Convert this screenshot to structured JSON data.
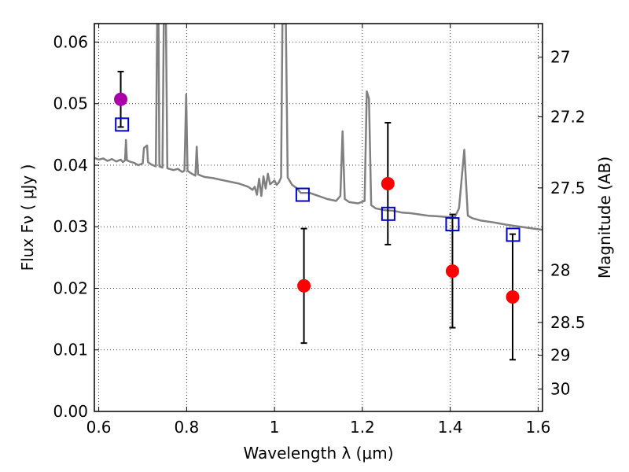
{
  "chart_data": {
    "type": "scatter",
    "xlabel": "Wavelength  λ (μm)",
    "ylabel": "Flux  Fν  ( μJy )",
    "ylabel_right": "Magnitude (AB)",
    "xlim": [
      0.59,
      1.61
    ],
    "ylim": [
      0.0,
      0.063
    ],
    "grid": true,
    "x_ticks": [
      {
        "value": 0.6,
        "label": "0.6"
      },
      {
        "value": 0.8,
        "label": "0.8"
      },
      {
        "value": 1.0,
        "label": "1"
      },
      {
        "value": 1.2,
        "label": "1.2"
      },
      {
        "value": 1.4,
        "label": "1.4"
      },
      {
        "value": 1.6,
        "label": "1.6"
      }
    ],
    "y_ticks": [
      {
        "value": 0.0,
        "label": "0.00"
      },
      {
        "value": 0.01,
        "label": "0.01"
      },
      {
        "value": 0.02,
        "label": "0.02"
      },
      {
        "value": 0.03,
        "label": "0.03"
      },
      {
        "value": 0.04,
        "label": "0.04"
      },
      {
        "value": 0.05,
        "label": "0.05"
      },
      {
        "value": 0.06,
        "label": "0.06"
      }
    ],
    "mag_ticks": [
      {
        "mag": 27,
        "label": "27"
      },
      {
        "mag": 27.2,
        "label": "27.2"
      },
      {
        "mag": 27.5,
        "label": "27.5"
      },
      {
        "mag": 28,
        "label": "28"
      },
      {
        "mag": 28.5,
        "label": "28.5"
      },
      {
        "mag": 29,
        "label": "29"
      },
      {
        "mag": 30,
        "label": "30"
      }
    ],
    "observed": [
      {
        "x": 0.65,
        "y": 0.0507,
        "err": 0.0045,
        "color": "#aa00aa"
      },
      {
        "x": 1.067,
        "y": 0.0204,
        "err": 0.0093,
        "color": "#ff0000"
      },
      {
        "x": 1.258,
        "y": 0.037,
        "err": 0.0099,
        "color": "#ff0000"
      },
      {
        "x": 1.405,
        "y": 0.0228,
        "err": 0.0092,
        "color": "#ff0000"
      },
      {
        "x": 1.542,
        "y": 0.0186,
        "err": 0.0102,
        "color": "#ff0000"
      }
    ],
    "model_points": [
      {
        "x": 0.653,
        "y": 0.0466
      },
      {
        "x": 1.064,
        "y": 0.0352
      },
      {
        "x": 1.259,
        "y": 0.0321
      },
      {
        "x": 1.405,
        "y": 0.0304
      },
      {
        "x": 1.543,
        "y": 0.0287
      }
    ],
    "spectrum": {
      "color": "#808080",
      "points": [
        [
          0.59,
          0.0412
        ],
        [
          0.6,
          0.0409
        ],
        [
          0.61,
          0.0411
        ],
        [
          0.62,
          0.0407
        ],
        [
          0.63,
          0.041
        ],
        [
          0.64,
          0.0406
        ],
        [
          0.65,
          0.0409
        ],
        [
          0.655,
          0.0405
        ],
        [
          0.66,
          0.0408
        ],
        [
          0.662,
          0.0441
        ],
        [
          0.664,
          0.0408
        ],
        [
          0.67,
          0.0406
        ],
        [
          0.68,
          0.0404
        ],
        [
          0.69,
          0.04
        ],
        [
          0.7,
          0.0403
        ],
        [
          0.703,
          0.0428
        ],
        [
          0.71,
          0.0432
        ],
        [
          0.712,
          0.0405
        ],
        [
          0.72,
          0.0401
        ],
        [
          0.73,
          0.0398
        ],
        [
          0.733,
          0.063
        ],
        [
          0.736,
          0.063
        ],
        [
          0.738,
          0.0398
        ],
        [
          0.745,
          0.0396
        ],
        [
          0.748,
          0.063
        ],
        [
          0.753,
          0.063
        ],
        [
          0.756,
          0.0395
        ],
        [
          0.77,
          0.0392
        ],
        [
          0.78,
          0.0394
        ],
        [
          0.79,
          0.0389
        ],
        [
          0.795,
          0.0391
        ],
        [
          0.799,
          0.0515
        ],
        [
          0.802,
          0.0391
        ],
        [
          0.81,
          0.0387
        ],
        [
          0.82,
          0.0383
        ],
        [
          0.823,
          0.043
        ],
        [
          0.826,
          0.0385
        ],
        [
          0.84,
          0.0381
        ],
        [
          0.86,
          0.0379
        ],
        [
          0.88,
          0.0376
        ],
        [
          0.9,
          0.0373
        ],
        [
          0.92,
          0.037
        ],
        [
          0.94,
          0.0365
        ],
        [
          0.95,
          0.036
        ],
        [
          0.955,
          0.0365
        ],
        [
          0.96,
          0.0352
        ],
        [
          0.965,
          0.0378
        ],
        [
          0.97,
          0.035
        ],
        [
          0.975,
          0.0382
        ],
        [
          0.98,
          0.0362
        ],
        [
          0.985,
          0.0386
        ],
        [
          0.99,
          0.0369
        ],
        [
          1.0,
          0.0375
        ],
        [
          1.005,
          0.0368
        ],
        [
          1.01,
          0.0372
        ],
        [
          1.015,
          0.038
        ],
        [
          1.018,
          0.063
        ],
        [
          1.026,
          0.063
        ],
        [
          1.03,
          0.038
        ],
        [
          1.04,
          0.0368
        ],
        [
          1.05,
          0.0363
        ],
        [
          1.06,
          0.0355
        ],
        [
          1.08,
          0.0355
        ],
        [
          1.1,
          0.035
        ],
        [
          1.12,
          0.0345
        ],
        [
          1.14,
          0.0342
        ],
        [
          1.15,
          0.035
        ],
        [
          1.155,
          0.0455
        ],
        [
          1.16,
          0.0345
        ],
        [
          1.17,
          0.034
        ],
        [
          1.19,
          0.0338
        ],
        [
          1.205,
          0.0342
        ],
        [
          1.21,
          0.052
        ],
        [
          1.215,
          0.0508
        ],
        [
          1.22,
          0.0335
        ],
        [
          1.23,
          0.033
        ],
        [
          1.25,
          0.0327
        ],
        [
          1.27,
          0.0326
        ],
        [
          1.29,
          0.0323
        ],
        [
          1.31,
          0.0322
        ],
        [
          1.33,
          0.032
        ],
        [
          1.35,
          0.0318
        ],
        [
          1.37,
          0.0317
        ],
        [
          1.39,
          0.0316
        ],
        [
          1.41,
          0.0315
        ],
        [
          1.42,
          0.033
        ],
        [
          1.432,
          0.0425
        ],
        [
          1.44,
          0.0318
        ],
        [
          1.45,
          0.0314
        ],
        [
          1.47,
          0.031
        ],
        [
          1.5,
          0.0307
        ],
        [
          1.53,
          0.0303
        ],
        [
          1.56,
          0.03
        ],
        [
          1.59,
          0.0297
        ],
        [
          1.61,
          0.0295
        ]
      ]
    }
  }
}
